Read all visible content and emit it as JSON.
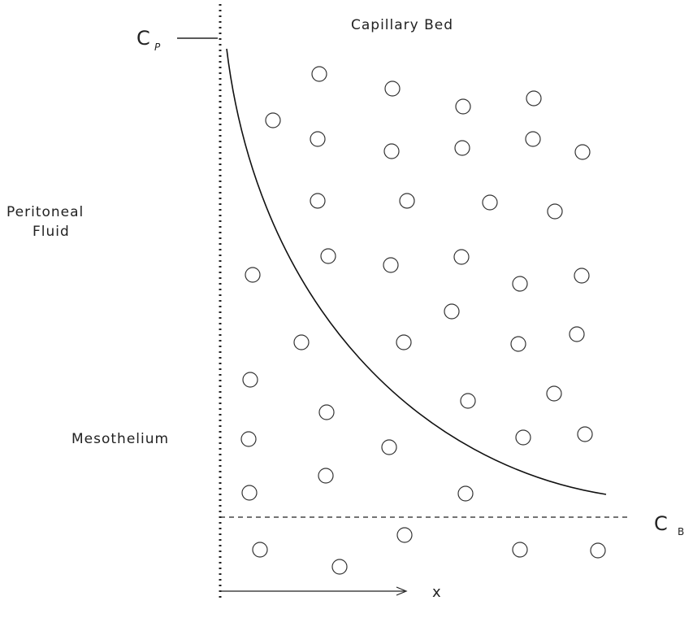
{
  "title": "Capillary Bed",
  "labels": {
    "cp": "C",
    "cp_sub": "P",
    "fluid": [
      "Peritoneal",
      "Fluid"
    ],
    "mesothelium": "Mesothelium",
    "cb": "C",
    "cb_sub": "B",
    "x": "x"
  }
}
